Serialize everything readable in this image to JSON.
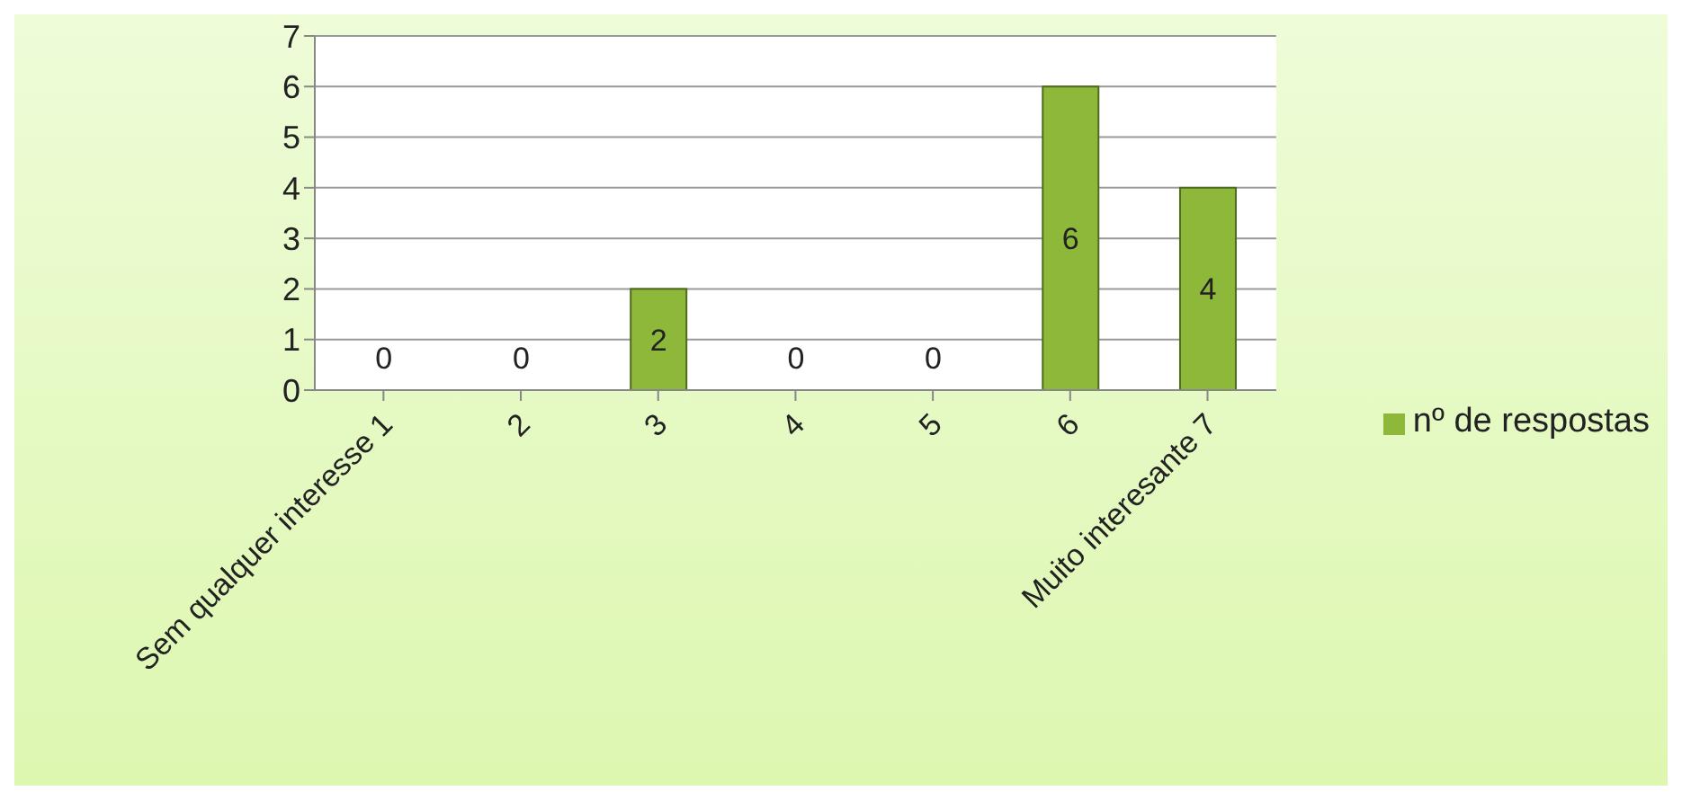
{
  "chart_data": {
    "type": "bar",
    "categories": [
      "Sem qualquer interesse 1",
      "2",
      "3",
      "4",
      "5",
      "6",
      "Muito interesante 7"
    ],
    "series": [
      {
        "name": "nº de respostas",
        "color": "#8db83a",
        "values": [
          0,
          0,
          2,
          0,
          0,
          6,
          4
        ]
      }
    ],
    "ylim": [
      0,
      7
    ],
    "yticks": [
      0,
      1,
      2,
      3,
      4,
      5,
      6,
      7
    ],
    "grid": "y",
    "legend": "right",
    "data_labels": true
  }
}
